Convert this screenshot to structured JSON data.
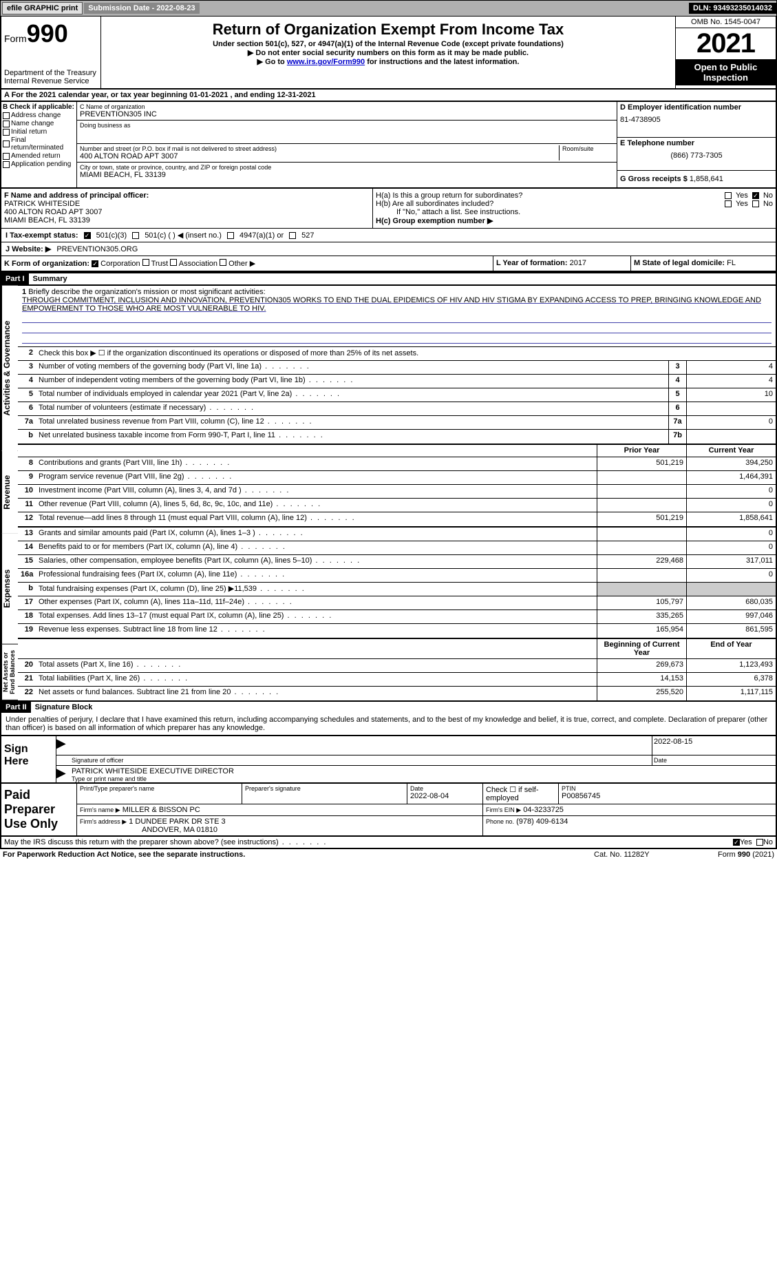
{
  "topbar": {
    "efile": "efile GRAPHIC print",
    "sub_label": "Submission Date - 2022-08-23",
    "dln": "DLN: 93493235014032"
  },
  "header": {
    "form_word": "Form",
    "form_no": "990",
    "dept": "Department of the Treasury",
    "irs": "Internal Revenue Service",
    "title": "Return of Organization Exempt From Income Tax",
    "sub1": "Under section 501(c), 527, or 4947(a)(1) of the Internal Revenue Code (except private foundations)",
    "sub2": "▶ Do not enter social security numbers on this form as it may be made public.",
    "sub3_pre": "▶ Go to ",
    "sub3_link": "www.irs.gov/Form990",
    "sub3_post": " for instructions and the latest information.",
    "omb": "OMB No. 1545-0047",
    "year": "2021",
    "otp": "Open to Public Inspection"
  },
  "row_a": "A For the 2021 calendar year, or tax year beginning 01-01-2021    , and ending 12-31-2021",
  "col_b": {
    "hdr": "B Check if applicable:",
    "addr": "Address change",
    "name": "Name change",
    "init": "Initial return",
    "final": "Final return/terminated",
    "amend": "Amended return",
    "app": "Application pending"
  },
  "col_c": {
    "c_label": "C Name of organization",
    "org": "PREVENTION305 INC",
    "dba_label": "Doing business as",
    "addr_label": "Number and street (or P.O. box if mail is not delivered to street address)",
    "room_label": "Room/suite",
    "addr": "400 ALTON ROAD APT 3007",
    "city_label": "City or town, state or province, country, and ZIP or foreign postal code",
    "city": "MIAMI BEACH, FL  33139"
  },
  "col_d": {
    "d_label": "D Employer identification number",
    "ein": "81-4738905",
    "e_label": "E Telephone number",
    "phone": "(866) 773-7305",
    "g_label": "G Gross receipts $",
    "g_val": "1,858,641"
  },
  "f": {
    "label": "F Name and address of principal officer:",
    "name": "PATRICK WHITESIDE",
    "addr1": "400 ALTON ROAD APT 3007",
    "addr2": "MIAMI BEACH, FL  33139"
  },
  "h": {
    "ha": "H(a)  Is this a group return for subordinates?",
    "hb": "H(b)  Are all subordinates included?",
    "hb_note": "If \"No,\" attach a list. See instructions.",
    "hc": "H(c)  Group exemption number ▶",
    "yes": "Yes",
    "no": "No"
  },
  "i": {
    "label": "I  Tax-exempt status:",
    "o1": "501(c)(3)",
    "o2": "501(c) (   ) ◀ (insert no.)",
    "o3": "4947(a)(1) or",
    "o4": "527"
  },
  "j": {
    "label": "J  Website: ▶",
    "val": "PREVENTION305.ORG"
  },
  "k": {
    "label": "K Form of organization:",
    "corp": "Corporation",
    "trust": "Trust",
    "assoc": "Association",
    "other": "Other ▶"
  },
  "l": {
    "label": "L Year of formation:",
    "val": "2017"
  },
  "m": {
    "label": "M State of legal domicile:",
    "val": "FL"
  },
  "part1": {
    "num": "Part I",
    "title": "Summary"
  },
  "line1": {
    "num": "1",
    "desc": "Briefly describe the organization's mission or most significant activities:",
    "text": "THROUGH COMMITMENT, INCLUSION AND INNOVATION, PREVENTION305 WORKS TO END THE DUAL EPIDEMICS OF HIV AND HIV STIGMA BY EXPANDING ACCESS TO PREP, BRINGING KNOWLEDGE AND EMPOWERMENT TO THOSE WHO ARE MOST VULNERABLE TO HIV."
  },
  "line2": {
    "num": "2",
    "desc": "Check this box ▶ ☐ if the organization discontinued its operations or disposed of more than 25% of its net assets."
  },
  "lines_ag": [
    {
      "n": "3",
      "d": "Number of voting members of the governing body (Part VI, line 1a)",
      "b": "3",
      "v": "4"
    },
    {
      "n": "4",
      "d": "Number of independent voting members of the governing body (Part VI, line 1b)",
      "b": "4",
      "v": "4"
    },
    {
      "n": "5",
      "d": "Total number of individuals employed in calendar year 2021 (Part V, line 2a)",
      "b": "5",
      "v": "10"
    },
    {
      "n": "6",
      "d": "Total number of volunteers (estimate if necessary)",
      "b": "6",
      "v": ""
    },
    {
      "n": "7a",
      "d": "Total unrelated business revenue from Part VIII, column (C), line 12",
      "b": "7a",
      "v": "0"
    },
    {
      "n": "b",
      "d": "Net unrelated business taxable income from Form 990-T, Part I, line 11",
      "b": "7b",
      "v": ""
    }
  ],
  "yr_hdr": {
    "prior": "Prior Year",
    "curr": "Current Year"
  },
  "rev_lines": [
    {
      "n": "8",
      "d": "Contributions and grants (Part VIII, line 1h)",
      "p": "501,219",
      "c": "394,250"
    },
    {
      "n": "9",
      "d": "Program service revenue (Part VIII, line 2g)",
      "p": "",
      "c": "1,464,391"
    },
    {
      "n": "10",
      "d": "Investment income (Part VIII, column (A), lines 3, 4, and 7d )",
      "p": "",
      "c": "0"
    },
    {
      "n": "11",
      "d": "Other revenue (Part VIII, column (A), lines 5, 6d, 8c, 9c, 10c, and 11e)",
      "p": "",
      "c": "0"
    },
    {
      "n": "12",
      "d": "Total revenue—add lines 8 through 11 (must equal Part VIII, column (A), line 12)",
      "p": "501,219",
      "c": "1,858,641"
    }
  ],
  "exp_lines": [
    {
      "n": "13",
      "d": "Grants and similar amounts paid (Part IX, column (A), lines 1–3 )",
      "p": "",
      "c": "0"
    },
    {
      "n": "14",
      "d": "Benefits paid to or for members (Part IX, column (A), line 4)",
      "p": "",
      "c": "0"
    },
    {
      "n": "15",
      "d": "Salaries, other compensation, employee benefits (Part IX, column (A), lines 5–10)",
      "p": "229,468",
      "c": "317,011"
    },
    {
      "n": "16a",
      "d": "Professional fundraising fees (Part IX, column (A), line 11e)",
      "p": "",
      "c": "0"
    },
    {
      "n": "b",
      "d": "Total fundraising expenses (Part IX, column (D), line 25) ▶11,539",
      "p": "shade",
      "c": "shade"
    },
    {
      "n": "17",
      "d": "Other expenses (Part IX, column (A), lines 11a–11d, 11f–24e)",
      "p": "105,797",
      "c": "680,035"
    },
    {
      "n": "18",
      "d": "Total expenses. Add lines 13–17 (must equal Part IX, column (A), line 25)",
      "p": "335,265",
      "c": "997,046"
    },
    {
      "n": "19",
      "d": "Revenue less expenses. Subtract line 18 from line 12",
      "p": "165,954",
      "c": "861,595"
    }
  ],
  "na_hdr": {
    "beg": "Beginning of Current Year",
    "end": "End of Year"
  },
  "na_lines": [
    {
      "n": "20",
      "d": "Total assets (Part X, line 16)",
      "p": "269,673",
      "c": "1,123,493"
    },
    {
      "n": "21",
      "d": "Total liabilities (Part X, line 26)",
      "p": "14,153",
      "c": "6,378"
    },
    {
      "n": "22",
      "d": "Net assets or fund balances. Subtract line 21 from line 20",
      "p": "255,520",
      "c": "1,117,115"
    }
  ],
  "vtabs": {
    "ag": "Activities & Governance",
    "rev": "Revenue",
    "exp": "Expenses",
    "na": "Net Assets or Fund Balances"
  },
  "part2": {
    "num": "Part II",
    "title": "Signature Block"
  },
  "penalty": "Under penalties of perjury, I declare that I have examined this return, including accompanying schedules and statements, and to the best of my knowledge and belief, it is true, correct, and complete. Declaration of preparer (other than officer) is based on all information of which preparer has any knowledge.",
  "sign": {
    "here": "Sign Here",
    "sig_lbl": "Signature of officer",
    "date_lbl": "Date",
    "date_val": "2022-08-15",
    "name": "PATRICK WHITESIDE  EXECUTIVE DIRECTOR",
    "name_lbl": "Type or print name and title"
  },
  "prep": {
    "left": "Paid Preparer Use Only",
    "pt_name_lbl": "Print/Type preparer's name",
    "sig_lbl": "Preparer's signature",
    "date_lbl": "Date",
    "date_val": "2022-08-04",
    "check_lbl": "Check ☐ if self-employed",
    "ptin_lbl": "PTIN",
    "ptin": "P00856745",
    "firm_name_lbl": "Firm's name     ▶",
    "firm_name": "MILLER & BISSON PC",
    "firm_ein_lbl": "Firm's EIN ▶",
    "firm_ein": "04-3233725",
    "firm_addr_lbl": "Firm's address ▶",
    "firm_addr1": "1 DUNDEE PARK DR STE 3",
    "firm_addr2": "ANDOVER, MA  01810",
    "phone_lbl": "Phone no.",
    "phone": "(978) 409-6134"
  },
  "discuss": {
    "text": "May the IRS discuss this return with the preparer shown above? (see instructions)",
    "yes": "Yes",
    "no": "No"
  },
  "footer": {
    "pra": "For Paperwork Reduction Act Notice, see the separate instructions.",
    "cat": "Cat. No. 11282Y",
    "form": "Form 990 (2021)"
  }
}
